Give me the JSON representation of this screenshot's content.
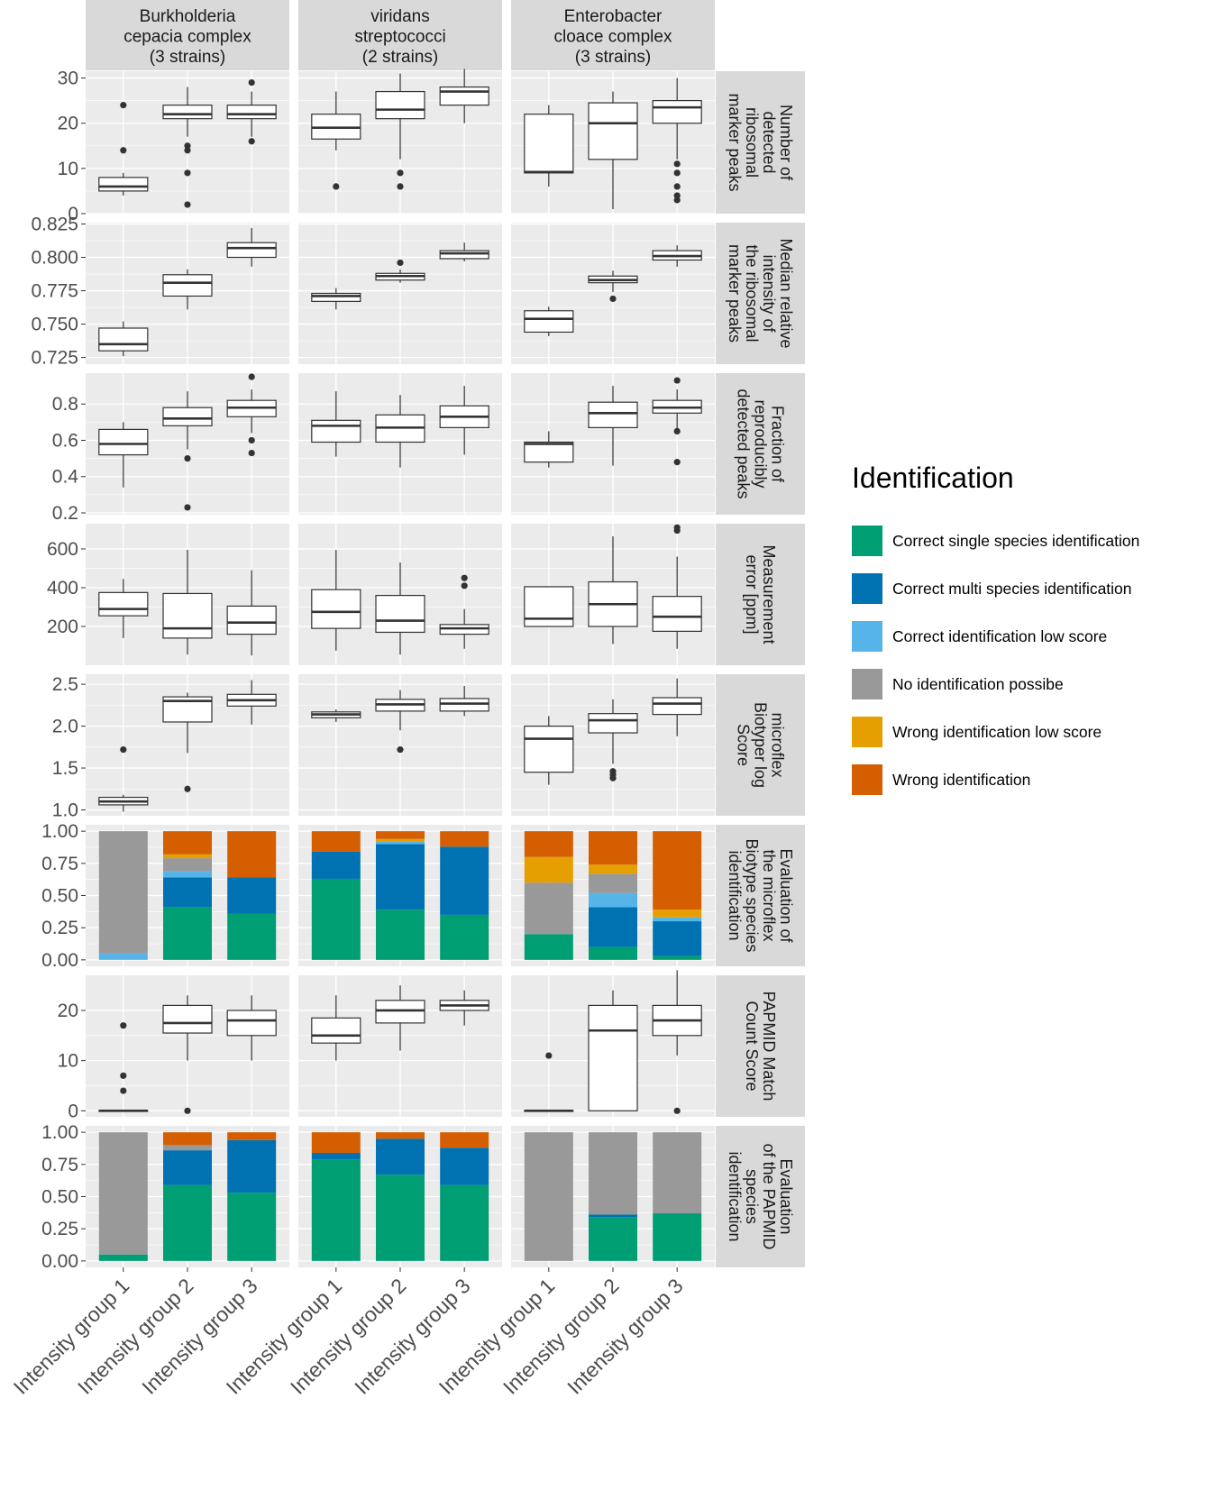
{
  "chart_data": {
    "type": "faceted-boxplot-and-stacked-bar",
    "x_categories": [
      "Intensity group 1",
      "Intensity group 2",
      "Intensity group 3"
    ],
    "columns": [
      {
        "line1": "Burkholderia",
        "line2": "cepacia complex",
        "line3": "(3 strains)"
      },
      {
        "line1": "viridans",
        "line2": "streptococci",
        "line3": "(2 strains)"
      },
      {
        "line1": "Enterobacter",
        "line2": "cloace complex",
        "line3": "(3 strains)"
      }
    ],
    "rows": [
      {
        "kind": "box",
        "label_lines": [
          "Number of",
          "detected",
          "ribosomal",
          "marker peaks"
        ],
        "ylim": [
          0,
          31.5
        ],
        "ticks": [
          0,
          10,
          20,
          30
        ],
        "tick_labels": [
          "0",
          "10",
          "20",
          "30"
        ],
        "boxes": [
          [
            {
              "q1": 5,
              "med": 6,
              "q3": 8,
              "lo": 4,
              "hi": 9,
              "outliers": [
                14,
                24
              ]
            },
            {
              "q1": 21,
              "med": 22,
              "q3": 24,
              "lo": 17,
              "hi": 28,
              "outliers": [
                2,
                9,
                14,
                15
              ]
            },
            {
              "q1": 21,
              "med": 22,
              "q3": 24,
              "lo": 17,
              "hi": 27,
              "outliers": [
                16,
                29
              ]
            }
          ],
          [
            {
              "q1": 16.5,
              "med": 19,
              "q3": 22,
              "lo": 14,
              "hi": 27,
              "outliers": [
                6
              ]
            },
            {
              "q1": 21,
              "med": 23,
              "q3": 27,
              "lo": 12,
              "hi": 31,
              "outliers": [
                6,
                9
              ]
            },
            {
              "q1": 24,
              "med": 27,
              "q3": 28,
              "lo": 20,
              "hi": 32,
              "outliers": []
            }
          ],
          [
            {
              "q1": 9,
              "med": 9.2,
              "q3": 22,
              "lo": 6,
              "hi": 24,
              "outliers": []
            },
            {
              "q1": 12,
              "med": 20,
              "q3": 24.5,
              "lo": 1,
              "hi": 27,
              "outliers": []
            },
            {
              "q1": 20,
              "med": 23.5,
              "q3": 25,
              "lo": 12,
              "hi": 30,
              "outliers": [
                3,
                4,
                6,
                9,
                11
              ]
            }
          ]
        ]
      },
      {
        "kind": "box",
        "label_lines": [
          "Median relative",
          "intensity of",
          "the ribosomal",
          "marker peaks"
        ],
        "ylim": [
          0.72,
          0.826
        ],
        "ticks": [
          0.725,
          0.75,
          0.775,
          0.8,
          0.825
        ],
        "tick_labels": [
          "0.725",
          "0.750",
          "0.775",
          "0.800",
          "0.825"
        ],
        "boxes": [
          [
            {
              "q1": 0.73,
              "med": 0.735,
              "q3": 0.747,
              "lo": 0.726,
              "hi": 0.752,
              "outliers": []
            },
            {
              "q1": 0.771,
              "med": 0.781,
              "q3": 0.787,
              "lo": 0.761,
              "hi": 0.791,
              "outliers": []
            },
            {
              "q1": 0.8,
              "med": 0.807,
              "q3": 0.811,
              "lo": 0.793,
              "hi": 0.822,
              "outliers": []
            }
          ],
          [
            {
              "q1": 0.767,
              "med": 0.771,
              "q3": 0.773,
              "lo": 0.761,
              "hi": 0.777,
              "outliers": []
            },
            {
              "q1": 0.783,
              "med": 0.786,
              "q3": 0.788,
              "lo": 0.781,
              "hi": 0.791,
              "outliers": [
                0.796
              ]
            },
            {
              "q1": 0.799,
              "med": 0.803,
              "q3": 0.805,
              "lo": 0.797,
              "hi": 0.811,
              "outliers": []
            }
          ],
          [
            {
              "q1": 0.744,
              "med": 0.754,
              "q3": 0.76,
              "lo": 0.741,
              "hi": 0.763,
              "outliers": []
            },
            {
              "q1": 0.781,
              "med": 0.783,
              "q3": 0.786,
              "lo": 0.774,
              "hi": 0.79,
              "outliers": [
                0.769
              ]
            },
            {
              "q1": 0.798,
              "med": 0.801,
              "q3": 0.805,
              "lo": 0.793,
              "hi": 0.809,
              "outliers": []
            }
          ]
        ]
      },
      {
        "kind": "box",
        "label_lines": [
          "Fraction of",
          "reproducibly",
          "detected peaks"
        ],
        "ylim": [
          0.19,
          0.97
        ],
        "ticks": [
          0.2,
          0.4,
          0.6,
          0.8
        ],
        "tick_labels": [
          "0.2",
          "0.4",
          "0.6",
          "0.8"
        ],
        "boxes": [
          [
            {
              "q1": 0.52,
              "med": 0.58,
              "q3": 0.66,
              "lo": 0.34,
              "hi": 0.7,
              "outliers": []
            },
            {
              "q1": 0.68,
              "med": 0.72,
              "q3": 0.78,
              "lo": 0.55,
              "hi": 0.87,
              "outliers": [
                0.5,
                0.23
              ]
            },
            {
              "q1": 0.73,
              "med": 0.78,
              "q3": 0.82,
              "lo": 0.64,
              "hi": 0.88,
              "outliers": [
                0.95,
                0.6,
                0.53
              ]
            }
          ],
          [
            {
              "q1": 0.59,
              "med": 0.68,
              "q3": 0.71,
              "lo": 0.51,
              "hi": 0.87,
              "outliers": []
            },
            {
              "q1": 0.59,
              "med": 0.67,
              "q3": 0.74,
              "lo": 0.45,
              "hi": 0.85,
              "outliers": []
            },
            {
              "q1": 0.67,
              "med": 0.73,
              "q3": 0.79,
              "lo": 0.52,
              "hi": 0.9,
              "outliers": []
            }
          ],
          [
            {
              "q1": 0.48,
              "med": 0.58,
              "q3": 0.59,
              "lo": 0.45,
              "hi": 0.65,
              "outliers": []
            },
            {
              "q1": 0.67,
              "med": 0.75,
              "q3": 0.81,
              "lo": 0.46,
              "hi": 0.9,
              "outliers": []
            },
            {
              "q1": 0.75,
              "med": 0.78,
              "q3": 0.82,
              "lo": 0.66,
              "hi": 0.88,
              "outliers": [
                0.93,
                0.65,
                0.48
              ]
            }
          ]
        ]
      },
      {
        "kind": "box",
        "label_lines": [
          "Measurement",
          "error [ppm]"
        ],
        "ylim": [
          0,
          730
        ],
        "ticks": [
          200,
          400,
          600
        ],
        "tick_labels": [
          "200",
          "400",
          "600"
        ],
        "boxes": [
          [
            {
              "q1": 255,
              "med": 290,
              "q3": 375,
              "lo": 140,
              "hi": 445,
              "outliers": []
            },
            {
              "q1": 140,
              "med": 190,
              "q3": 370,
              "lo": 55,
              "hi": 595,
              "outliers": []
            },
            {
              "q1": 160,
              "med": 220,
              "q3": 305,
              "lo": 50,
              "hi": 490,
              "outliers": []
            }
          ],
          [
            {
              "q1": 190,
              "med": 275,
              "q3": 390,
              "lo": 75,
              "hi": 595,
              "outliers": []
            },
            {
              "q1": 170,
              "med": 230,
              "q3": 360,
              "lo": 55,
              "hi": 530,
              "outliers": []
            },
            {
              "q1": 160,
              "med": 190,
              "q3": 210,
              "lo": 85,
              "hi": 290,
              "outliers": [
                410,
                450
              ]
            }
          ],
          [
            {
              "q1": 200,
              "med": 240,
              "q3": 405,
              "lo": 200,
              "hi": 405,
              "outliers": []
            },
            {
              "q1": 200,
              "med": 315,
              "q3": 430,
              "lo": 110,
              "hi": 665,
              "outliers": []
            },
            {
              "q1": 175,
              "med": 250,
              "q3": 355,
              "lo": 85,
              "hi": 560,
              "outliers": [
                695,
                710
              ]
            }
          ]
        ]
      },
      {
        "kind": "box",
        "label_lines": [
          "microflex",
          "Biotyper log",
          "Score"
        ],
        "ylim": [
          0.93,
          2.62
        ],
        "ticks": [
          1.0,
          1.5,
          2.0,
          2.5
        ],
        "tick_labels": [
          "1.0",
          "1.5",
          "2.0",
          "2.5"
        ],
        "boxes": [
          [
            {
              "q1": 1.06,
              "med": 1.1,
              "q3": 1.15,
              "lo": 0.98,
              "hi": 1.18,
              "outliers": [
                1.72
              ]
            },
            {
              "q1": 2.05,
              "med": 2.3,
              "q3": 2.35,
              "lo": 1.68,
              "hi": 2.4,
              "outliers": [
                1.25
              ]
            },
            {
              "q1": 2.24,
              "med": 2.31,
              "q3": 2.38,
              "lo": 2.02,
              "hi": 2.55,
              "outliers": []
            }
          ],
          [
            {
              "q1": 2.1,
              "med": 2.14,
              "q3": 2.17,
              "lo": 2.05,
              "hi": 2.2,
              "outliers": []
            },
            {
              "q1": 2.18,
              "med": 2.26,
              "q3": 2.32,
              "lo": 1.95,
              "hi": 2.43,
              "outliers": [
                1.72
              ]
            },
            {
              "q1": 2.18,
              "med": 2.27,
              "q3": 2.33,
              "lo": 2.12,
              "hi": 2.48,
              "outliers": []
            }
          ],
          [
            {
              "q1": 1.45,
              "med": 1.85,
              "q3": 2.0,
              "lo": 1.3,
              "hi": 2.12,
              "outliers": []
            },
            {
              "q1": 1.92,
              "med": 2.07,
              "q3": 2.15,
              "lo": 1.55,
              "hi": 2.32,
              "outliers": [
                1.38,
                1.42,
                1.46
              ]
            },
            {
              "q1": 2.14,
              "med": 2.27,
              "q3": 2.34,
              "lo": 1.88,
              "hi": 2.57,
              "outliers": []
            }
          ]
        ]
      },
      {
        "kind": "bar",
        "label_lines": [
          "Evaluation of",
          "the microflex",
          "Biotype species",
          "identification"
        ],
        "ylim": [
          -0.05,
          1.05
        ],
        "ticks": [
          0.0,
          0.25,
          0.5,
          0.75,
          1.0
        ],
        "tick_labels": [
          "0.00",
          "0.25",
          "0.50",
          "0.75",
          "1.00"
        ],
        "stacks": [
          [
            [
              0,
              0,
              0.05,
              0.95,
              0,
              0
            ],
            [
              0.41,
              0.23,
              0.05,
              0.1,
              0.03,
              0.18
            ],
            [
              0.36,
              0.28,
              0,
              0,
              0,
              0.36
            ]
          ],
          [
            [
              0.63,
              0.21,
              0,
              0,
              0,
              0.16
            ],
            [
              0.39,
              0.51,
              0.02,
              0,
              0.02,
              0.06
            ],
            [
              0.35,
              0.53,
              0,
              0,
              0,
              0.12
            ]
          ],
          [
            [
              0.2,
              0,
              0,
              0.4,
              0.2,
              0.2
            ],
            [
              0.1,
              0.31,
              0.11,
              0.15,
              0.07,
              0.26
            ],
            [
              0.03,
              0.27,
              0.03,
              0,
              0.06,
              0.61
            ]
          ]
        ]
      },
      {
        "kind": "box",
        "label_lines": [
          "PAPMID Match",
          "Count Score"
        ],
        "ylim": [
          -1.2,
          27
        ],
        "ticks": [
          0,
          10,
          20
        ],
        "tick_labels": [
          "0",
          "10",
          "20"
        ],
        "boxes": [
          [
            {
              "q1": 0,
              "med": 0,
              "q3": 0,
              "lo": 0,
              "hi": 0,
              "outliers": [
                4,
                7,
                17
              ]
            },
            {
              "q1": 15.5,
              "med": 17.5,
              "q3": 21,
              "lo": 10,
              "hi": 23,
              "outliers": [
                0
              ]
            },
            {
              "q1": 15,
              "med": 18,
              "q3": 20,
              "lo": 10,
              "hi": 23,
              "outliers": []
            }
          ],
          [
            {
              "q1": 13.5,
              "med": 15,
              "q3": 18.5,
              "lo": 10,
              "hi": 23,
              "outliers": []
            },
            {
              "q1": 17.5,
              "med": 20,
              "q3": 22,
              "lo": 12,
              "hi": 25,
              "outliers": []
            },
            {
              "q1": 20,
              "med": 21,
              "q3": 22,
              "lo": 17,
              "hi": 24,
              "outliers": []
            }
          ],
          [
            {
              "q1": 0,
              "med": 0,
              "q3": 0,
              "lo": 0,
              "hi": 0,
              "outliers": [
                11
              ]
            },
            {
              "q1": 0,
              "med": 16,
              "q3": 21,
              "lo": 0,
              "hi": 24,
              "outliers": []
            },
            {
              "q1": 15,
              "med": 18,
              "q3": 21,
              "lo": 11,
              "hi": 28,
              "outliers": [
                0
              ]
            }
          ]
        ]
      },
      {
        "kind": "bar",
        "label_lines": [
          "Evaluation",
          "of the PAPMID",
          "species",
          "identification"
        ],
        "ylim": [
          -0.05,
          1.05
        ],
        "ticks": [
          0.0,
          0.25,
          0.5,
          0.75,
          1.0
        ],
        "tick_labels": [
          "0.00",
          "0.25",
          "0.50",
          "0.75",
          "1.00"
        ],
        "stacks": [
          [
            [
              0.05,
              0,
              0,
              0.95,
              0,
              0
            ],
            [
              0.59,
              0.27,
              0,
              0.04,
              0,
              0.1
            ],
            [
              0.53,
              0.41,
              0,
              0,
              0,
              0.06
            ]
          ],
          [
            [
              0.79,
              0.05,
              0,
              0,
              0,
              0.16
            ],
            [
              0.67,
              0.28,
              0,
              0,
              0,
              0.05
            ],
            [
              0.59,
              0.29,
              0,
              0,
              0,
              0.12
            ]
          ],
          [
            [
              0,
              0,
              0,
              1.0,
              0,
              0
            ],
            [
              0.34,
              0.02,
              0,
              0.64,
              0,
              0
            ],
            [
              0.37,
              0,
              0,
              0.63,
              0,
              0
            ]
          ]
        ]
      }
    ],
    "legend": {
      "title": "Identification",
      "position": "right",
      "items": [
        {
          "label": "Correct single species identification",
          "color": "#009E73"
        },
        {
          "label": "Correct multi species identification",
          "color": "#0072B2"
        },
        {
          "label": "Correct identification low score",
          "color": "#56B4E9"
        },
        {
          "label": "No identification possibe",
          "color": "#999999"
        },
        {
          "label": "Wrong identification low score",
          "color": "#E69F00"
        },
        {
          "label": "Wrong identification",
          "color": "#D55E00"
        }
      ]
    },
    "colors": {
      "panel_bg": "#EBEBEB",
      "strip_bg": "#D9D9D9",
      "grid": "#FFFFFF",
      "text": "#4D4D4D",
      "strip_text": "#1A1A1A",
      "box_fill": "#FFFFFF",
      "box_stroke": "#333333"
    }
  }
}
